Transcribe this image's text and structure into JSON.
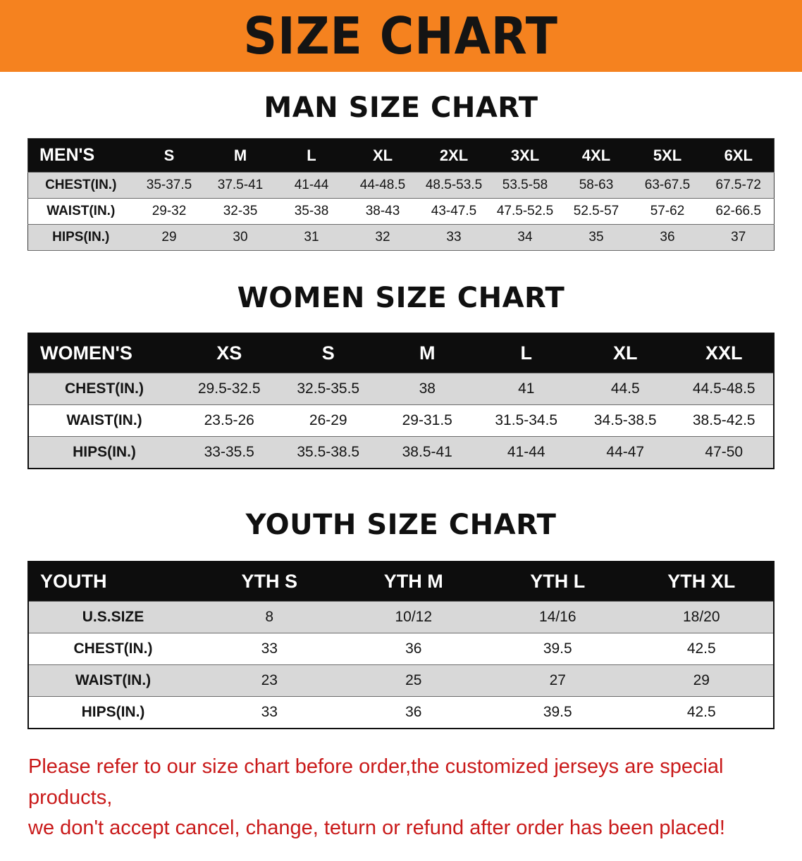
{
  "banner": {
    "title": "SIZE CHART",
    "bg_color": "#f5821f",
    "text_color": "#141414"
  },
  "sections": [
    {
      "heading": "MAN SIZE CHART",
      "header": [
        "MEN'S",
        "S",
        "M",
        "L",
        "XL",
        "2XL",
        "3XL",
        "4XL",
        "5XL",
        "6XL"
      ],
      "rows": [
        [
          "CHEST(IN.)",
          "35-37.5",
          "37.5-41",
          "41-44",
          "44-48.5",
          "48.5-53.5",
          "53.5-58",
          "58-63",
          "63-67.5",
          "67.5-72"
        ],
        [
          "WAIST(IN.)",
          "29-32",
          "32-35",
          "35-38",
          "38-43",
          "43-47.5",
          "47.5-52.5",
          "52.5-57",
          "57-62",
          "62-66.5"
        ],
        [
          "HIPS(IN.)",
          "29",
          "30",
          "31",
          "32",
          "33",
          "34",
          "35",
          "36",
          "37"
        ]
      ]
    },
    {
      "heading": "WOMEN SIZE CHART",
      "header": [
        "WOMEN'S",
        "XS",
        "S",
        "M",
        "L",
        "XL",
        "XXL"
      ],
      "rows": [
        [
          "CHEST(IN.)",
          "29.5-32.5",
          "32.5-35.5",
          "38",
          "41",
          "44.5",
          "44.5-48.5"
        ],
        [
          "WAIST(IN.)",
          "23.5-26",
          "26-29",
          "29-31.5",
          "31.5-34.5",
          "34.5-38.5",
          "38.5-42.5"
        ],
        [
          "HIPS(IN.)",
          "33-35.5",
          "35.5-38.5",
          "38.5-41",
          "41-44",
          "44-47",
          "47-50"
        ]
      ]
    },
    {
      "heading": "YOUTH SIZE CHART",
      "header": [
        "YOUTH",
        "YTH S",
        "YTH M",
        "YTH L",
        "YTH XL"
      ],
      "rows": [
        [
          "U.S.SIZE",
          "8",
          "10/12",
          "14/16",
          "18/20"
        ],
        [
          "CHEST(IN.)",
          "33",
          "36",
          "39.5",
          "42.5"
        ],
        [
          "WAIST(IN.)",
          "23",
          "25",
          "27",
          "29"
        ],
        [
          "HIPS(IN.)",
          "33",
          "36",
          "39.5",
          "42.5"
        ]
      ]
    }
  ],
  "disclaimer": {
    "line1": "Please refer to our size chart before order,the customized jerseys are special products,",
    "line2": "we don't accept cancel, change, teturn or refund after order has been placed!",
    "color": "#c91a1a"
  }
}
